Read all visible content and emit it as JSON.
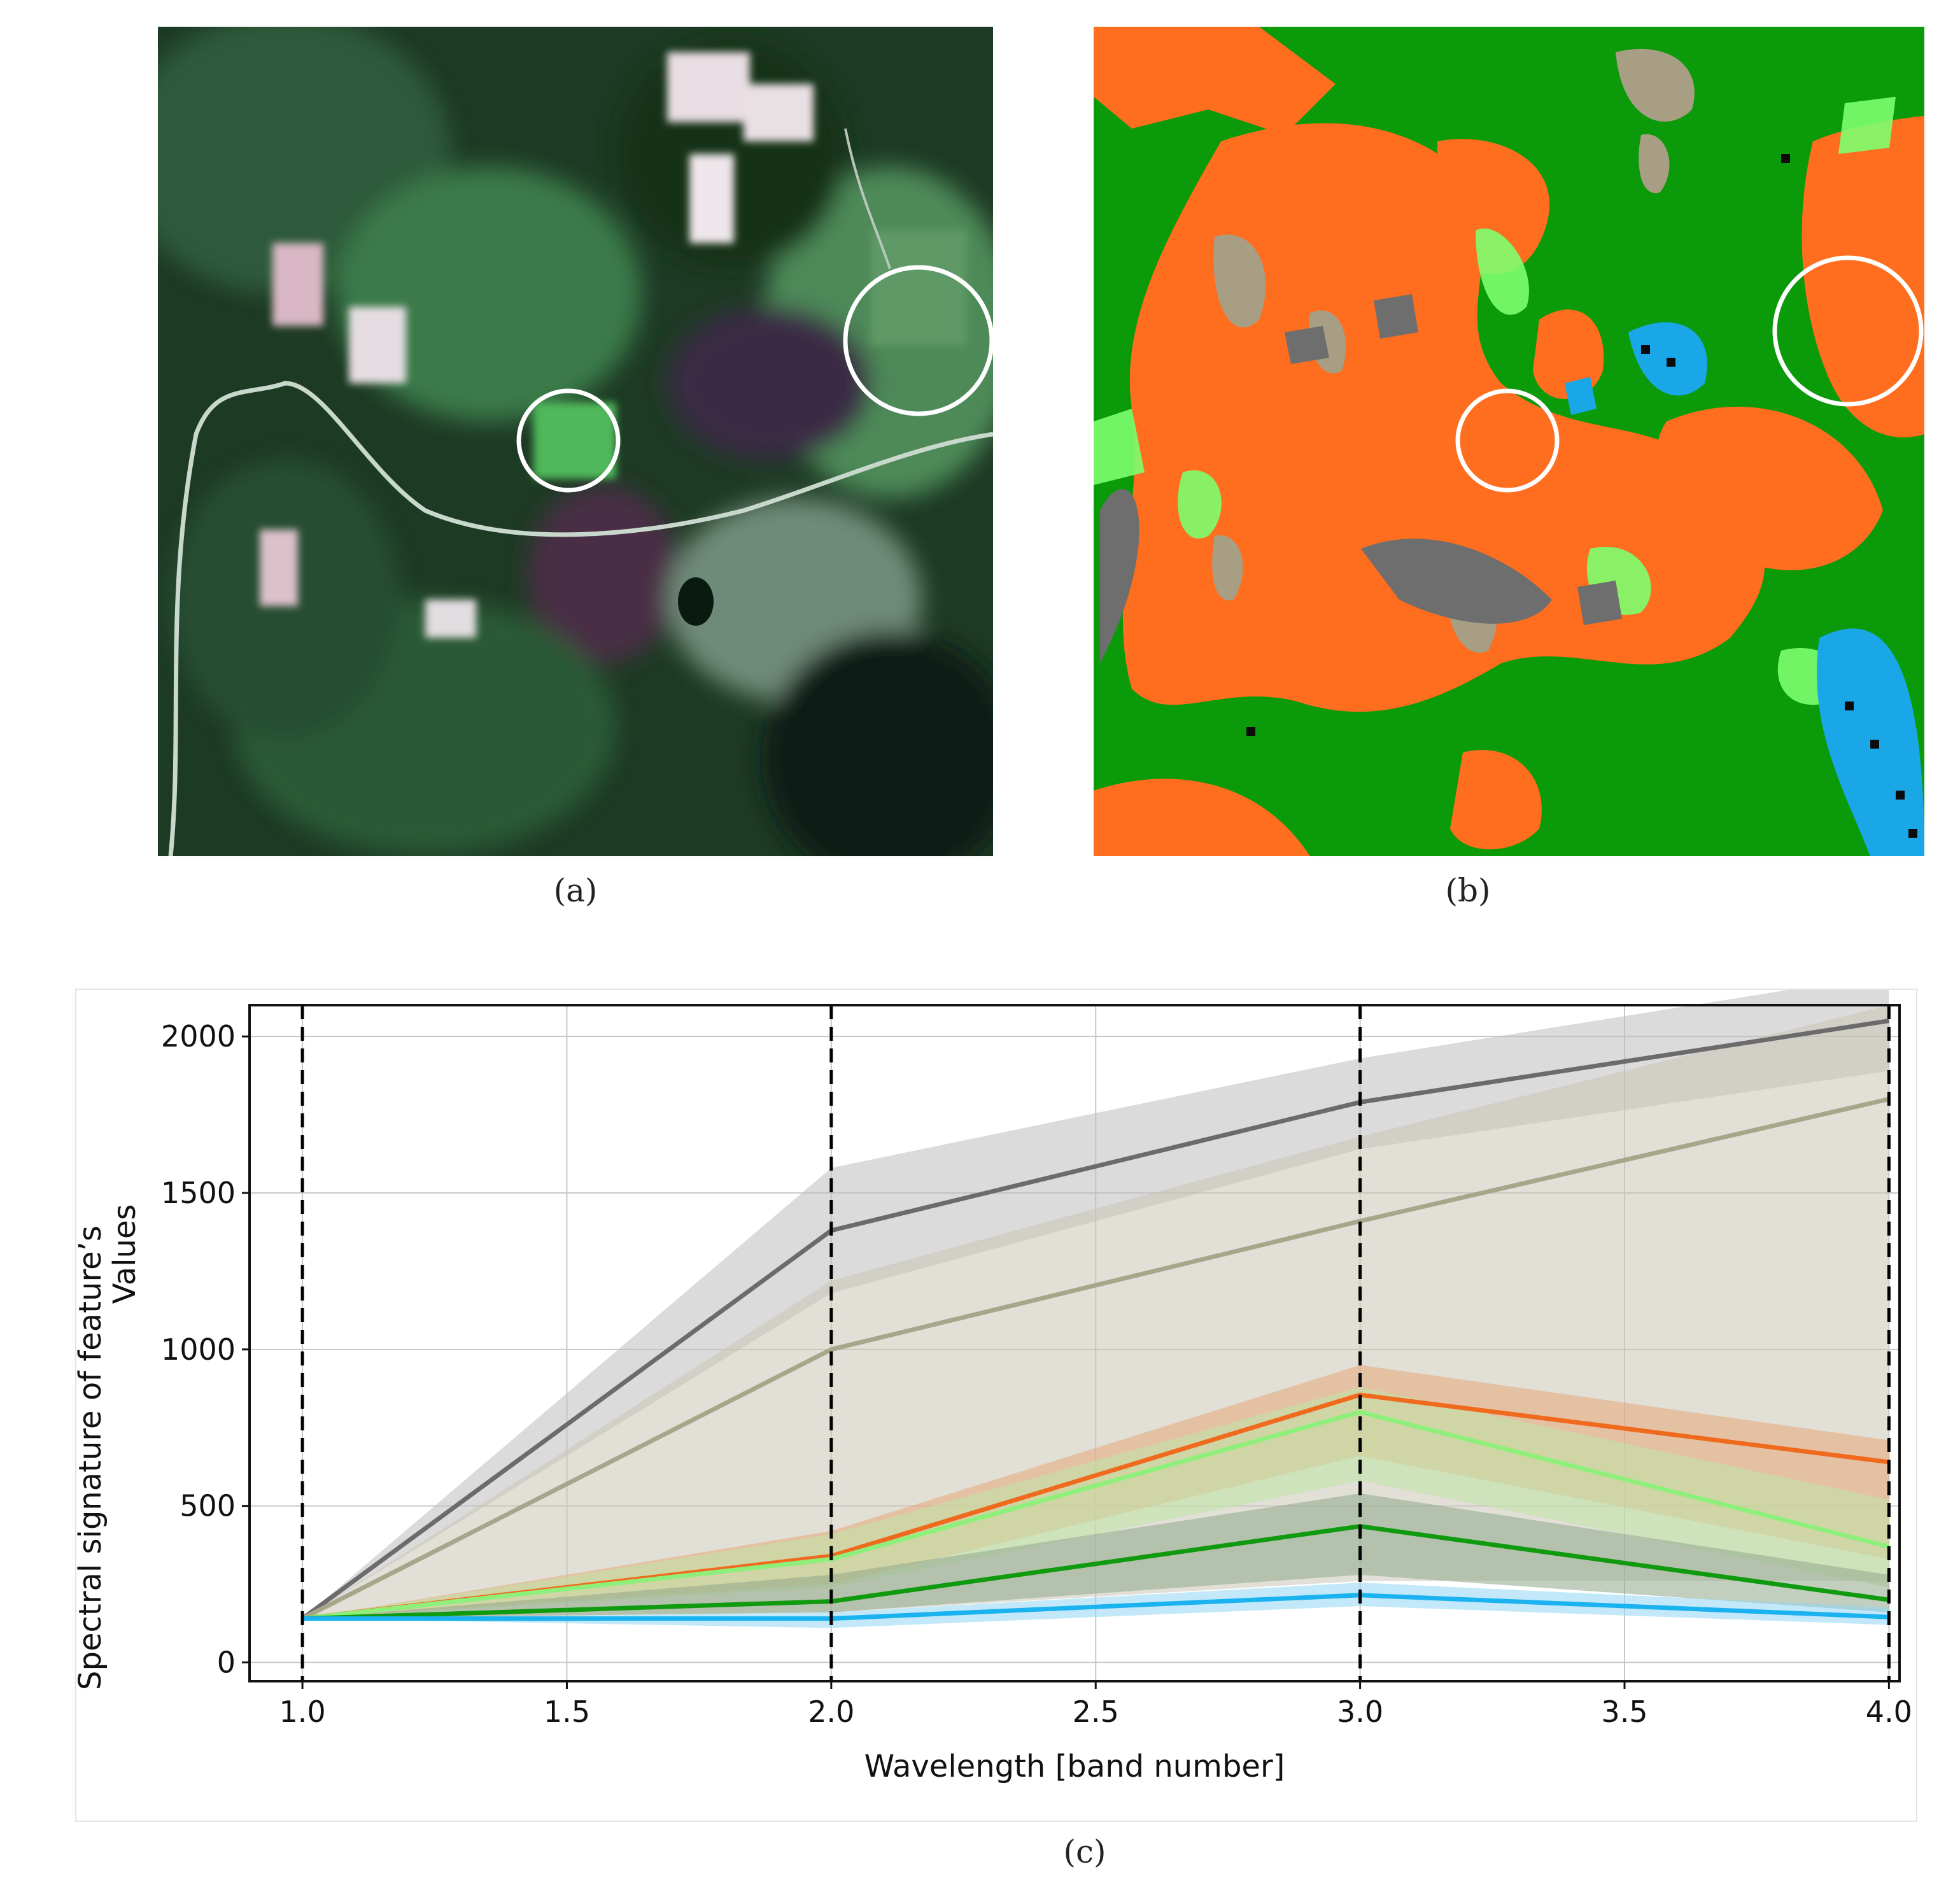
{
  "panels": {
    "a": {
      "caption": "(a)",
      "image": "satellite-rgb-image"
    },
    "b": {
      "caption": "(b)",
      "image": "classification-map"
    },
    "c": {
      "caption": "(c)"
    }
  },
  "colors": {
    "orange": "#ff6d1f",
    "dark_green": "#0a9a0a",
    "light_green": "#7dff6e",
    "blue": "#1aa7e8",
    "tan": "#a89e84",
    "gray": "#6e6e6e",
    "black": "#0b0b0b"
  },
  "chart_data": {
    "type": "line",
    "xlabel": "Wavelength [band number]",
    "ylabel_line1": "Spectral signature of feature’s",
    "ylabel_line2": "Values",
    "xlim": [
      0.9,
      4.02
    ],
    "ylim": [
      -60,
      2100
    ],
    "xticks": [
      "1.0",
      "1.5",
      "2.0",
      "2.5",
      "3.0",
      "3.5",
      "4.0"
    ],
    "yticks": [
      "0",
      "500",
      "1000",
      "1500",
      "2000"
    ],
    "vlines": [
      1.0,
      2.0,
      3.0,
      4.0
    ],
    "grid": true,
    "x": [
      1.0,
      2.0,
      3.0,
      4.0
    ],
    "series": [
      {
        "color": "#6b6b6b",
        "values": [
          140,
          1380,
          1790,
          2050
        ],
        "band_low": [
          140,
          1180,
          1640,
          1890
        ],
        "band_high": [
          140,
          1580,
          1930,
          2200
        ],
        "band_color": "#bdbdbd"
      },
      {
        "color": "#a8a68a",
        "values": [
          140,
          1000,
          1410,
          1800
        ],
        "band_low": [
          140,
          160,
          260,
          260
        ],
        "band_high": [
          140,
          1220,
          1680,
          2100
        ],
        "band_color": "#c9c5b5"
      },
      {
        "color": "#f06a1e",
        "values": [
          140,
          340,
          855,
          640
        ],
        "band_low": [
          140,
          250,
          660,
          330
        ],
        "band_high": [
          140,
          420,
          950,
          710
        ],
        "band_color": "#e8a77a"
      },
      {
        "color": "#8ef07a",
        "values": [
          140,
          330,
          800,
          370
        ],
        "band_low": [
          140,
          240,
          580,
          240
        ],
        "band_high": [
          140,
          410,
          880,
          520
        ],
        "band_color": "#bfe6a8"
      },
      {
        "color": "#0f9a0f",
        "values": [
          140,
          195,
          435,
          200
        ],
        "band_low": [
          140,
          160,
          280,
          160
        ],
        "band_high": [
          140,
          280,
          540,
          280
        ],
        "band_color": "#8fa88a"
      },
      {
        "color": "#1ab2ef",
        "values": [
          140,
          140,
          215,
          145
        ],
        "band_low": [
          140,
          110,
          180,
          120
        ],
        "band_high": [
          140,
          160,
          255,
          175
        ],
        "band_color": "#8fd5f5"
      }
    ]
  }
}
